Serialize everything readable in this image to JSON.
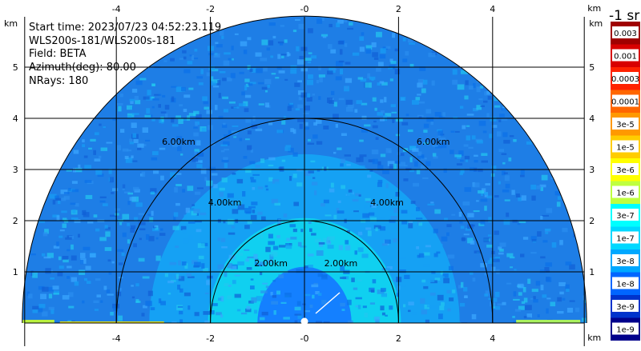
{
  "info": {
    "start_time": "Start time: 2023/07/23 04:52:23.119",
    "instrument": "WLS200s-181/WLS200s-181",
    "field": "Field: BETA",
    "azimuth": "Azimuth(deg): 80.00",
    "nrays": "NRays: 180"
  },
  "chart_data": {
    "type": "heatmap",
    "plot_kind": "RHI polar sector (range-height)",
    "x_unit_label": "km",
    "y_unit_label": "km",
    "xlim": [
      -6.0,
      6.0
    ],
    "ylim": [
      0,
      6.0
    ],
    "x_ticks": [
      -4,
      -2,
      0,
      2,
      4
    ],
    "x_tick_labels": [
      "-4",
      "-2",
      "-0",
      "2",
      "4"
    ],
    "y_ticks": [
      1,
      2,
      3,
      4,
      5
    ],
    "y_tick_labels": [
      "1",
      "2",
      "3",
      "4",
      "5"
    ],
    "max_range_km": 6.0,
    "range_rings_km": [
      2,
      4,
      6
    ],
    "range_ring_labels": [
      "2.00km",
      "4.00km",
      "6.00km"
    ],
    "grid": true,
    "colorbar": {
      "unit_label": "-1 sr",
      "position": "right",
      "levels": [
        "0.003",
        "0.001",
        "0.0003",
        "0.0001",
        "3e-5",
        "1e-5",
        "3e-6",
        "1e-6",
        "3e-7",
        "1e-7",
        "3e-8",
        "1e-8",
        "3e-9",
        "1e-9"
      ],
      "colors": [
        "#a00000",
        "#d80000",
        "#ff2200",
        "#ff6600",
        "#ff9900",
        "#ffcc00",
        "#ffff00",
        "#bfff3f",
        "#00ffff",
        "#00d8ff",
        "#00a8ff",
        "#0066ff",
        "#0033cc",
        "#00008b"
      ]
    },
    "dominant_colors": {
      "outer": "#1e7ee6",
      "middle": "#14a5f5",
      "inner": "#10d0f0",
      "core": "#1480ff"
    }
  }
}
